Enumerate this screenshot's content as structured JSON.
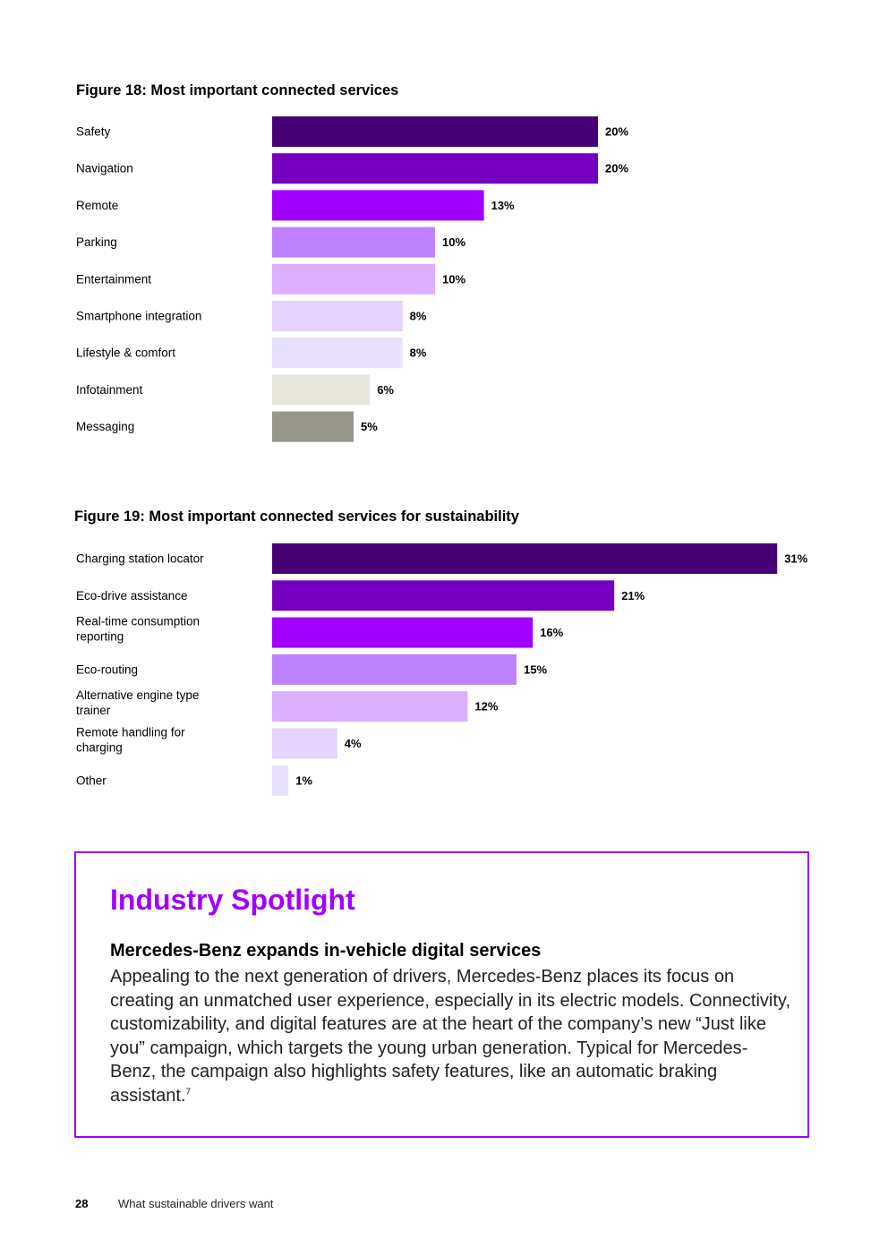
{
  "chart_data": [
    {
      "type": "bar",
      "orientation": "horizontal",
      "title": "Figure 18: Most important connected services",
      "categories": [
        "Safety",
        "Navigation",
        "Remote",
        "Parking",
        "Entertainment",
        "Smartphone integration",
        "Lifestyle & comfort",
        "Infotainment",
        "Messaging"
      ],
      "values": [
        20,
        20,
        13,
        10,
        10,
        8,
        8,
        6,
        5
      ],
      "value_labels": [
        "20%",
        "20%",
        "13%",
        "10%",
        "10%",
        "8%",
        "8%",
        "6%",
        "5%"
      ],
      "colors": [
        "#460073",
        "#7500c0",
        "#a100ff",
        "#be82ff",
        "#dcafff",
        "#e6d2ff",
        "#e8e0ff",
        "#e6e6dc",
        "#96968c"
      ],
      "xlabel": "",
      "ylabel": "",
      "xlim": [
        0,
        31
      ]
    },
    {
      "type": "bar",
      "orientation": "horizontal",
      "title": "Figure 19: Most important connected services for sustainability",
      "categories": [
        "Charging station locator",
        "Eco-drive assistance",
        "Real-time consumption reporting",
        "Eco-routing",
        "Alternative engine type trainer",
        "Remote handling for charging",
        "Other"
      ],
      "values": [
        31,
        21,
        16,
        15,
        12,
        4,
        1
      ],
      "value_labels": [
        "31%",
        "21%",
        "16%",
        "15%",
        "12%",
        "4%",
        "1%"
      ],
      "colors": [
        "#460073",
        "#7500c0",
        "#a100ff",
        "#be82ff",
        "#dcafff",
        "#e6d2ff",
        "#e8e0ff"
      ],
      "xlabel": "",
      "ylabel": "",
      "xlim": [
        0,
        31
      ]
    }
  ],
  "spotlight": {
    "title": "Industry Spotlight",
    "subtitle": "Mercedes-Benz expands in-vehicle digital services",
    "body": "Appealing to the next generation of drivers, Mercedes-Benz places its focus on creating an unmatched user experience, especially in its electric models. Connectivity, customizability, and digital features are at the heart of the company’s new “Just like you” campaign, which targets the young urban generation. Typical for Mercedes-Benz, the campaign also highlights safety features, like an automatic braking assistant.",
    "footnote": "7",
    "accent_color": "#a100ff"
  },
  "footer": {
    "page_number": "28",
    "document_title": "What sustainable drivers want"
  }
}
